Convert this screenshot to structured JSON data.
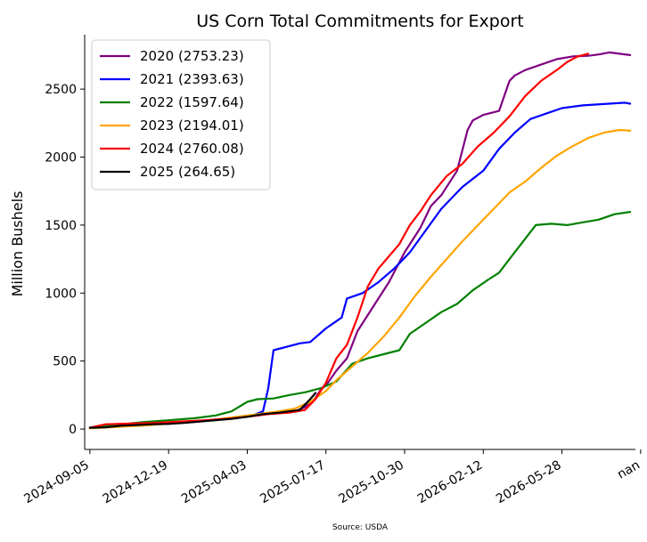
{
  "chart_data": {
    "type": "line",
    "title": "US Corn Total Commitments for Export",
    "xlabel": "",
    "ylabel": "Million Bushels",
    "source": "Source: USDA",
    "x_ticks": [
      "2024-09-05",
      "2024-12-19",
      "2025-04-03",
      "2025-07-17",
      "2025-10-30",
      "2026-02-12",
      "2026-05-28",
      "nan"
    ],
    "x_range": [
      "2024-08-29",
      "2026-09-03"
    ],
    "ylim": [
      -150,
      2900
    ],
    "y_ticks": [
      0,
      500,
      1000,
      1500,
      2000,
      2500
    ],
    "grid": false,
    "legend_position": "top-left",
    "series": [
      {
        "name": "2020 (2753.23)",
        "color": "#800080",
        "x": [
          "2024-09-05",
          "2024-10-03",
          "2024-11-07",
          "2024-12-19",
          "2025-01-23",
          "2025-02-20",
          "2025-03-20",
          "2025-04-17",
          "2025-05-15",
          "2025-06-05",
          "2025-06-19",
          "2025-07-03",
          "2025-07-10",
          "2025-07-17",
          "2025-07-31",
          "2025-08-14",
          "2025-08-28",
          "2025-09-18",
          "2025-10-09",
          "2025-10-30",
          "2025-11-20",
          "2025-12-04",
          "2025-12-18",
          "2026-01-08",
          "2026-01-22",
          "2026-01-29",
          "2026-02-12",
          "2026-03-05",
          "2026-03-19",
          "2026-03-26",
          "2026-04-09",
          "2026-04-30",
          "2026-05-21",
          "2026-06-11",
          "2026-07-02",
          "2026-07-16",
          "2026-07-30",
          "2026-08-13",
          "2026-08-27"
        ],
        "y": [
          10,
          20,
          30,
          40,
          55,
          70,
          85,
          100,
          120,
          130,
          160,
          230,
          290,
          320,
          430,
          520,
          720,
          900,
          1080,
          1300,
          1480,
          1640,
          1720,
          1900,
          2200,
          2270,
          2310,
          2340,
          2560,
          2600,
          2640,
          2680,
          2720,
          2740,
          2745,
          2755,
          2770,
          2760,
          2750
        ]
      },
      {
        "name": "2021 (2393.63)",
        "color": "#0000ff",
        "x": [
          "2024-09-05",
          "2024-10-03",
          "2024-11-07",
          "2024-12-19",
          "2025-01-23",
          "2025-02-20",
          "2025-03-20",
          "2025-04-10",
          "2025-04-24",
          "2025-05-01",
          "2025-05-08",
          "2025-05-29",
          "2025-06-12",
          "2025-06-26",
          "2025-07-17",
          "2025-08-07",
          "2025-08-14",
          "2025-09-04",
          "2025-09-25",
          "2025-10-16",
          "2025-11-06",
          "2025-11-27",
          "2025-12-18",
          "2026-01-15",
          "2026-02-12",
          "2026-03-05",
          "2026-03-26",
          "2026-04-16",
          "2026-05-07",
          "2026-05-28",
          "2026-06-25",
          "2026-07-23",
          "2026-08-20",
          "2026-08-27"
        ],
        "y": [
          10,
          20,
          30,
          40,
          55,
          70,
          85,
          100,
          130,
          300,
          580,
          610,
          630,
          640,
          740,
          820,
          960,
          1000,
          1080,
          1180,
          1300,
          1460,
          1620,
          1780,
          1900,
          2060,
          2180,
          2280,
          2320,
          2360,
          2380,
          2390,
          2400,
          2393
        ]
      },
      {
        "name": "2022 (1597.64)",
        "color": "#008000",
        "x": [
          "2024-09-05",
          "2024-10-10",
          "2024-11-14",
          "2024-12-19",
          "2025-01-23",
          "2025-02-20",
          "2025-03-13",
          "2025-04-03",
          "2025-04-17",
          "2025-05-08",
          "2025-05-29",
          "2025-06-19",
          "2025-07-10",
          "2025-07-31",
          "2025-08-21",
          "2025-09-11",
          "2025-10-02",
          "2025-10-23",
          "2025-11-06",
          "2025-11-27",
          "2025-12-18",
          "2026-01-08",
          "2026-01-29",
          "2026-02-19",
          "2026-03-05",
          "2026-03-19",
          "2026-04-09",
          "2026-04-23",
          "2026-05-14",
          "2026-06-04",
          "2026-06-25",
          "2026-07-16",
          "2026-08-06",
          "2026-08-27"
        ],
        "y": [
          10,
          30,
          50,
          65,
          80,
          100,
          130,
          200,
          220,
          225,
          250,
          270,
          300,
          350,
          480,
          520,
          550,
          580,
          700,
          780,
          860,
          920,
          1020,
          1100,
          1150,
          1250,
          1400,
          1500,
          1510,
          1500,
          1520,
          1540,
          1580,
          1597
        ]
      },
      {
        "name": "2023 (2194.01)",
        "color": "#ffa500",
        "x": [
          "2024-09-05",
          "2024-10-10",
          "2024-11-14",
          "2024-12-19",
          "2025-01-23",
          "2025-02-20",
          "2025-03-20",
          "2025-04-17",
          "2025-05-15",
          "2025-06-05",
          "2025-06-26",
          "2025-07-17",
          "2025-07-31",
          "2025-08-21",
          "2025-09-11",
          "2025-10-02",
          "2025-10-23",
          "2025-11-13",
          "2025-12-04",
          "2025-12-25",
          "2026-01-15",
          "2026-02-05",
          "2026-02-26",
          "2026-03-19",
          "2026-04-09",
          "2026-04-30",
          "2026-05-21",
          "2026-06-11",
          "2026-07-02",
          "2026-07-23",
          "2026-08-13",
          "2026-08-27"
        ],
        "y": [
          5,
          15,
          25,
          40,
          55,
          70,
          90,
          110,
          130,
          150,
          200,
          280,
          360,
          460,
          560,
          680,
          820,
          980,
          1120,
          1250,
          1380,
          1500,
          1620,
          1740,
          1820,
          1920,
          2010,
          2080,
          2140,
          2180,
          2200,
          2194
        ]
      },
      {
        "name": "2024 (2760.08)",
        "color": "#ff0000",
        "x": [
          "2024-09-05",
          "2024-09-26",
          "2024-10-24",
          "2024-11-28",
          "2025-01-02",
          "2025-02-06",
          "2025-03-06",
          "2025-04-03",
          "2025-05-01",
          "2025-05-29",
          "2025-06-19",
          "2025-07-03",
          "2025-07-17",
          "2025-07-31",
          "2025-08-14",
          "2025-08-28",
          "2025-09-11",
          "2025-09-25",
          "2025-10-09",
          "2025-10-23",
          "2025-11-06",
          "2025-11-20",
          "2025-12-04",
          "2025-12-25",
          "2026-01-15",
          "2026-02-05",
          "2026-02-26",
          "2026-03-19",
          "2026-04-09",
          "2026-04-30",
          "2026-05-21",
          "2026-06-04",
          "2026-06-18",
          "2026-07-02"
        ],
        "y": [
          10,
          35,
          40,
          45,
          55,
          65,
          75,
          90,
          110,
          120,
          140,
          220,
          340,
          520,
          620,
          820,
          1050,
          1180,
          1270,
          1360,
          1500,
          1600,
          1720,
          1860,
          1950,
          2080,
          2180,
          2300,
          2450,
          2560,
          2640,
          2700,
          2740,
          2760
        ]
      },
      {
        "name": "2025 (264.65)",
        "color": "#000000",
        "x": [
          "2024-09-05",
          "2024-09-26",
          "2024-10-17",
          "2024-11-07",
          "2024-11-28",
          "2024-12-19",
          "2025-01-09",
          "2025-01-30",
          "2025-02-20",
          "2025-03-13",
          "2025-04-03",
          "2025-04-24",
          "2025-05-15",
          "2025-05-29",
          "2025-06-12",
          "2025-06-26",
          "2025-07-03"
        ],
        "y": [
          10,
          12,
          25,
          30,
          35,
          38,
          45,
          55,
          65,
          75,
          90,
          110,
          120,
          130,
          140,
          220,
          265
        ]
      }
    ]
  }
}
